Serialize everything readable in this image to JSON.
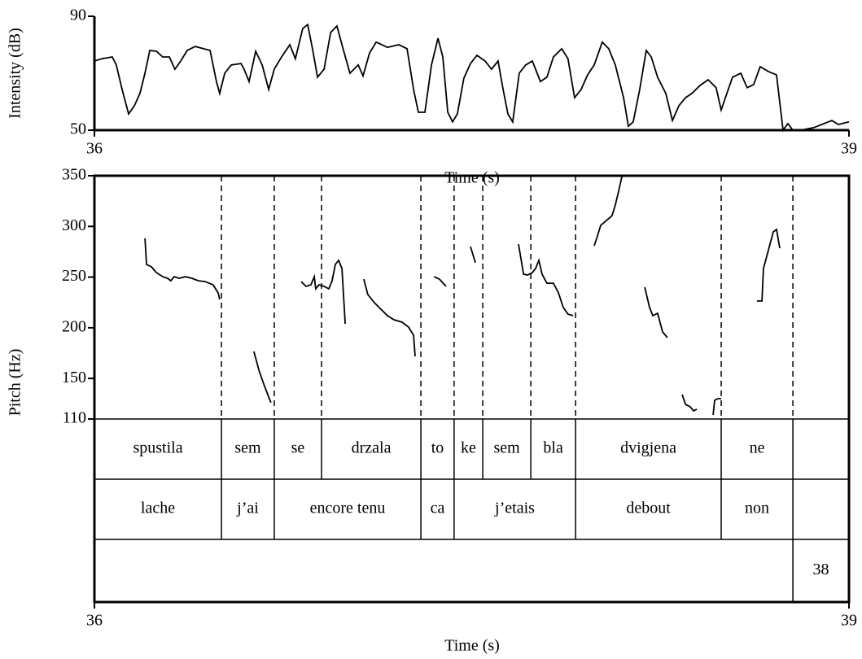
{
  "chart_data": [
    {
      "type": "line",
      "ylabel": "Intensity (dB)",
      "xlabel": "Time (s)",
      "xlim": [
        36,
        39
      ],
      "xticks": [
        36,
        39
      ],
      "ylim": [
        50,
        90
      ],
      "yticks": [
        90,
        50
      ],
      "x": [
        36.0,
        36.029,
        36.071,
        36.087,
        36.11,
        36.136,
        36.159,
        36.181,
        36.201,
        36.22,
        36.246,
        36.272,
        36.298,
        36.32,
        36.343,
        36.369,
        36.401,
        36.434,
        36.46,
        36.485,
        36.498,
        36.518,
        36.544,
        36.583,
        36.595,
        36.615,
        36.641,
        36.667,
        36.693,
        36.715,
        36.744,
        36.777,
        36.799,
        36.828,
        36.848,
        36.867,
        36.887,
        36.913,
        36.939,
        36.964,
        36.984,
        37.016,
        37.049,
        37.068,
        37.094,
        37.12,
        37.165,
        37.21,
        37.243,
        37.269,
        37.288,
        37.314,
        37.34,
        37.366,
        37.385,
        37.405,
        37.424,
        37.443,
        37.469,
        37.495,
        37.521,
        37.553,
        37.579,
        37.605,
        37.625,
        37.644,
        37.663,
        37.689,
        37.715,
        37.741,
        37.773,
        37.799,
        37.825,
        37.858,
        37.883,
        37.909,
        37.935,
        37.961,
        37.987,
        38.019,
        38.045,
        38.071,
        38.104,
        38.123,
        38.142,
        38.168,
        38.194,
        38.214,
        38.239,
        38.272,
        38.298,
        38.324,
        38.35,
        38.375,
        38.408,
        38.44,
        38.472,
        38.492,
        38.511,
        38.537,
        38.57,
        38.595,
        38.621,
        38.647,
        38.68,
        38.712,
        38.738,
        38.757,
        38.777,
        38.809,
        38.861,
        38.9,
        38.932,
        38.958,
        39.0
      ],
      "values": [
        74.3,
        75.1,
        75.7,
        72.9,
        64.3,
        55.7,
        58.6,
        62.9,
        70.0,
        78.0,
        77.7,
        75.7,
        75.7,
        71.4,
        74.3,
        78.0,
        79.4,
        78.6,
        78.0,
        67.1,
        62.9,
        70.0,
        72.9,
        73.4,
        71.4,
        67.1,
        77.7,
        72.9,
        64.3,
        71.4,
        75.7,
        80.0,
        75.1,
        85.7,
        87.1,
        78.6,
        68.6,
        71.4,
        84.3,
        86.6,
        80.0,
        70.0,
        72.9,
        69.1,
        77.1,
        80.9,
        79.1,
        80.0,
        78.6,
        64.3,
        56.3,
        56.3,
        72.9,
        82.3,
        75.7,
        56.3,
        52.9,
        55.7,
        68.3,
        73.4,
        76.3,
        74.3,
        71.4,
        74.3,
        64.3,
        55.7,
        52.9,
        70.0,
        72.9,
        74.3,
        67.1,
        68.6,
        75.7,
        78.6,
        75.1,
        61.4,
        64.3,
        69.4,
        72.9,
        80.9,
        78.6,
        72.9,
        61.4,
        51.4,
        52.9,
        64.3,
        78.0,
        75.7,
        68.6,
        62.9,
        53.4,
        58.6,
        61.4,
        62.9,
        65.7,
        67.7,
        64.9,
        57.1,
        62.0,
        68.6,
        70.0,
        64.9,
        66.0,
        72.3,
        70.6,
        69.4,
        50.0,
        52.3,
        50.0,
        50.0,
        50.9,
        52.3,
        53.4,
        52.0,
        52.9
      ]
    },
    {
      "type": "line",
      "ylabel": "Pitch (Hz)",
      "xlabel": "Time (s)",
      "xlim": [
        36,
        39
      ],
      "xticks": [
        36,
        39
      ],
      "ylim": [
        110,
        350
      ],
      "yticks": [
        110,
        150,
        200,
        250,
        300,
        350
      ],
      "x": [
        36.201,
        36.207,
        36.227,
        36.246,
        36.272,
        36.291,
        36.304,
        36.317,
        36.337,
        36.362,
        36.388,
        36.414,
        36.44,
        36.472,
        36.492,
        36.498,
        null,
        36.634,
        36.654,
        36.673,
        36.693,
        36.702,
        null,
        36.822,
        36.841,
        36.861,
        36.874,
        36.88,
        36.893,
        36.913,
        36.932,
        36.945,
        36.958,
        36.971,
        36.984,
        36.997,
        null,
        37.071,
        37.087,
        37.113,
        37.139,
        37.165,
        37.191,
        37.223,
        37.249,
        37.269,
        37.275,
        null,
        37.35,
        37.372,
        37.398,
        null,
        37.495,
        37.515,
        null,
        37.686,
        37.706,
        37.722,
        37.741,
        37.754,
        37.767,
        37.78,
        37.799,
        37.825,
        37.845,
        37.864,
        37.883,
        37.903,
        null,
        37.987,
        38.0,
        38.013,
        38.039,
        38.058,
        38.071,
        38.084,
        38.097,
        null,
        38.188,
        38.207,
        38.22,
        38.239,
        38.259,
        38.278,
        null,
        38.337,
        38.35,
        38.369,
        38.382,
        38.395,
        null,
        38.46,
        38.466,
        38.479,
        38.492,
        null,
        38.634,
        38.654,
        38.66,
        38.673,
        38.686,
        38.699,
        38.712,
        38.725
      ],
      "values": [
        288.2,
        262.5,
        260.1,
        254.5,
        250.4,
        248.8,
        246.4,
        250.4,
        248.8,
        250.4,
        248.8,
        246.4,
        245.6,
        242.4,
        234.4,
        228.0,
        null,
        176.6,
        158.2,
        144.5,
        131.7,
        126.1,
        null,
        245.6,
        240.8,
        242.4,
        250.4,
        238.4,
        242.4,
        240.8,
        238.4,
        246.4,
        262.5,
        266.5,
        258.5,
        203.9,
        null,
        248.0,
        232.8,
        224.8,
        218.3,
        211.9,
        207.9,
        205.5,
        200.7,
        192.7,
        171.8,
        null,
        250.4,
        248.0,
        240.8,
        null,
        280.1,
        264.1,
        null,
        282.6,
        252.9,
        252.1,
        254.5,
        258.5,
        266.5,
        252.9,
        244.0,
        244.0,
        234.4,
        220.0,
        213.5,
        211.9,
        null,
        280.9,
        290.6,
        301.0,
        306.6,
        310.6,
        321.1,
        334.7,
        349.2,
        null,
        240.0,
        220.0,
        211.9,
        214.3,
        195.9,
        190.3,
        null,
        134.1,
        124.4,
        122.0,
        118.0,
        119.6,
        null,
        114.0,
        128.5,
        130.1,
        130.1,
        null,
        226.4,
        226.4,
        258.5,
        270.5,
        282.6,
        294.6,
        297.0,
        278.5
      ],
      "tiers": [
        {
          "intervals": [
            {
              "start": 36,
              "end": 36.505,
              "text": "spustila"
            },
            {
              "start": 36.505,
              "end": 36.715,
              "text": "sem"
            },
            {
              "start": 36.715,
              "end": 36.903,
              "text": "se"
            },
            {
              "start": 36.903,
              "end": 37.298,
              "text": "drzala"
            },
            {
              "start": 37.298,
              "end": 37.43,
              "text": "to"
            },
            {
              "start": 37.43,
              "end": 37.544,
              "text": "ke"
            },
            {
              "start": 37.544,
              "end": 37.735,
              "text": "sem"
            },
            {
              "start": 37.735,
              "end": 37.913,
              "text": "bla"
            },
            {
              "start": 37.913,
              "end": 38.492,
              "text": "dvigjena"
            },
            {
              "start": 38.492,
              "end": 38.777,
              "text": "ne"
            }
          ]
        },
        {
          "intervals": [
            {
              "start": 36,
              "end": 36.505,
              "text": "lache"
            },
            {
              "start": 36.505,
              "end": 36.715,
              "text": "j’ai"
            },
            {
              "start": 36.715,
              "end": 37.298,
              "text": "encore tenu"
            },
            {
              "start": 37.298,
              "end": 37.43,
              "text": "ca"
            },
            {
              "start": 37.43,
              "end": 37.913,
              "text": "j’etais"
            },
            {
              "start": 37.913,
              "end": 38.492,
              "text": "debout"
            },
            {
              "start": 38.492,
              "end": 38.777,
              "text": "non"
            }
          ]
        },
        {
          "intervals": [
            {
              "start": 38.777,
              "end": 39,
              "text": "38"
            }
          ]
        }
      ]
    }
  ]
}
